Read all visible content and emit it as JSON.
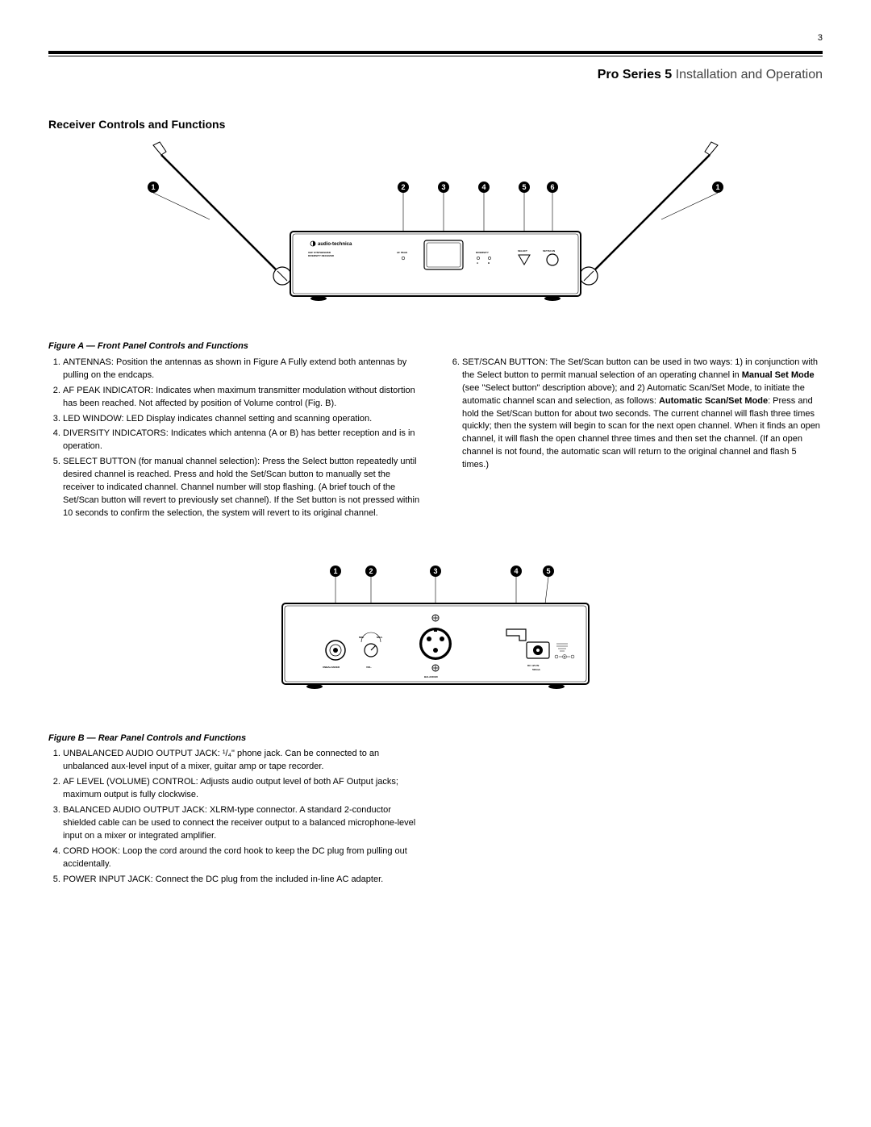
{
  "page_number": "3",
  "header": {
    "bold": "Pro Series 5",
    "rest": " Installation and Operation"
  },
  "section_title": "Receiver Controls and Functions",
  "figA": {
    "caption": "Figure A — Front Panel Controls and Functions",
    "brand": "audio-technica",
    "sub1": "UHF SYNTHESIZED",
    "sub2": "DIVERSITY RECEIVER",
    "afpeak": "AF PEAK",
    "diversity": "DIVERSITY",
    "divA": "A",
    "divB": "B",
    "select": "SELECT",
    "setscan": "SET/SCAN",
    "callouts": [
      "1",
      "2",
      "3",
      "4",
      "5",
      "6",
      "1"
    ]
  },
  "figB": {
    "caption": "Figure B — Rear Panel Controls and Functions",
    "unbalanced": "UNBALANCED",
    "vol": "VOL.",
    "min": "MIN.",
    "max": "MAX.",
    "balanced": "BALANCED",
    "dc": "DC 12V IN",
    "ma": "500mA",
    "callouts": [
      "1",
      "2",
      "3",
      "4",
      "5"
    ]
  },
  "listA_left": [
    "ANTENNAS:  Position the antennas as shown in Figure A Fully extend both antennas by pulling on the endcaps.",
    "AF PEAK INDICATOR:  Indicates when maximum transmitter modulation without distortion has been reached. Not affected by position of Volume control (Fig. B).",
    "LED WINDOW:  LED Display indicates channel setting and scanning operation.",
    "DIVERSITY INDICATORS:  Indicates which antenna (A or B) has better reception and is in operation.",
    "SELECT BUTTON (for manual channel selection):  Press the Select button repeatedly until desired channel is reached. Press and hold the Set/Scan button to manually set the receiver to indicated channel. Channel number will stop flashing. (A brief touch of the Set/Scan button will revert to previously set channel). If the Set button is not pressed within 10 seconds to confirm the selection, the system will revert to its original channel."
  ],
  "listA_right_start": 6,
  "listA_right_html": "SET/SCAN BUTTON:  The Set/Scan button can be used in two ways: 1) in conjunction with the Select button to permit manual selection of an operating channel in <b>Manual Set Mode</b> (see \"Select button\" description above); and 2) Automatic Scan/Set Mode, to initiate the automatic channel scan and selection, as follows: <b>Automatic Scan/Set Mode</b>: Press and hold the Set/Scan button for about two seconds. The current channel will flash three times quickly; then the system will begin to scan for the next open channel. When it finds an open channel, it will flash the open channel three times and then set the channel. (If an open channel is not found, the automatic scan will return to the original channel and flash 5 times.)",
  "listB": [
    "UNBALANCED AUDIO OUTPUT JACK:  ¹/₄\" phone jack. Can be connected to an unbalanced aux-level input of a mixer, guitar amp or tape recorder.",
    "AF LEVEL (VOLUME) CONTROL:  Adjusts audio output level of both AF Output jacks; maximum output is fully clockwise.",
    "BALANCED AUDIO OUTPUT JACK:  XLRM-type connector. A standard 2-conductor shielded cable can be used to connect the receiver output to a balanced microphone-level input on a mixer or integrated amplifier.",
    "CORD HOOK:  Loop the cord around the cord hook to keep the DC plug from pulling out accidentally.",
    "POWER INPUT JACK:  Connect the DC plug from the included in-line AC adapter."
  ]
}
